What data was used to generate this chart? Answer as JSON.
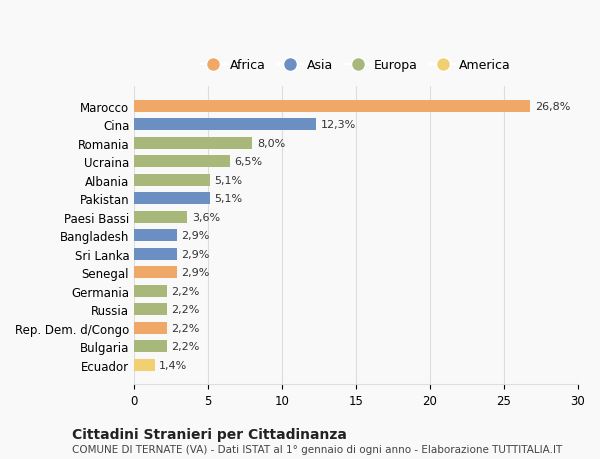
{
  "categories": [
    "Marocco",
    "Cina",
    "Romania",
    "Ucraina",
    "Albania",
    "Pakistan",
    "Paesi Bassi",
    "Bangladesh",
    "Sri Lanka",
    "Senegal",
    "Germania",
    "Russia",
    "Rep. Dem. d/Congo",
    "Bulgaria",
    "Ecuador"
  ],
  "values": [
    26.8,
    12.3,
    8.0,
    6.5,
    5.1,
    5.1,
    3.6,
    2.9,
    2.9,
    2.9,
    2.2,
    2.2,
    2.2,
    2.2,
    1.4
  ],
  "labels": [
    "26,8%",
    "12,3%",
    "8,0%",
    "6,5%",
    "5,1%",
    "5,1%",
    "3,6%",
    "2,9%",
    "2,9%",
    "2,9%",
    "2,2%",
    "2,2%",
    "2,2%",
    "2,2%",
    "1,4%"
  ],
  "continents": [
    "Africa",
    "Asia",
    "Europa",
    "Europa",
    "Europa",
    "Asia",
    "Europa",
    "Asia",
    "Asia",
    "Africa",
    "Europa",
    "Europa",
    "Africa",
    "Europa",
    "America"
  ],
  "colors": {
    "Africa": "#F0A868",
    "Asia": "#6B8FC2",
    "Europa": "#A8B87A",
    "America": "#F0D070"
  },
  "legend_order": [
    "Africa",
    "Asia",
    "Europa",
    "America"
  ],
  "xlim": [
    0,
    30
  ],
  "xticks": [
    0,
    5,
    10,
    15,
    20,
    25,
    30
  ],
  "title": "Cittadini Stranieri per Cittadinanza",
  "subtitle": "COMUNE DI TERNATE (VA) - Dati ISTAT al 1° gennaio di ogni anno - Elaborazione TUTTITALIA.IT",
  "bg_color": "#f9f9f9",
  "grid_color": "#dddddd"
}
